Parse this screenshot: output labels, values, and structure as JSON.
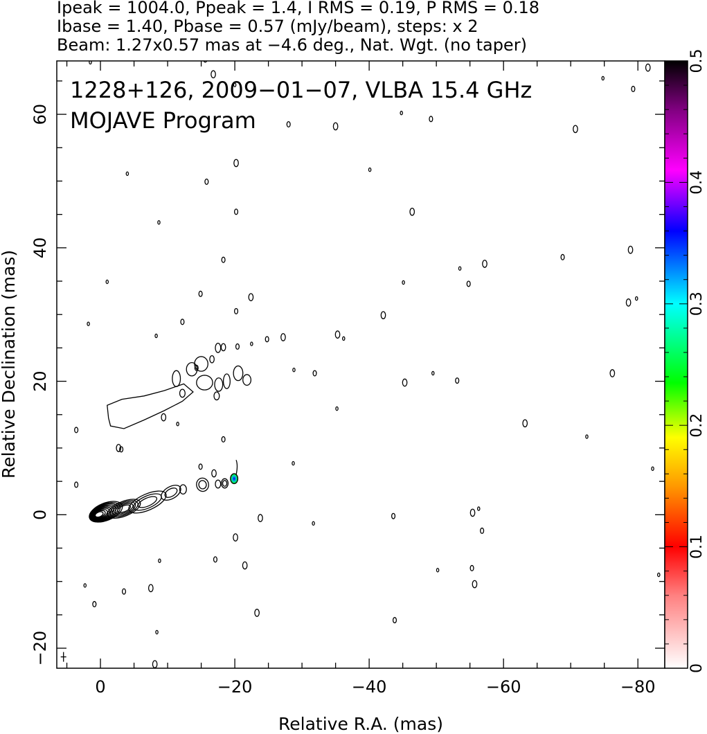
{
  "header": {
    "line1": "Ipeak = 1004.0, Ppeak = 1.4, I RMS = 0.19, P RMS = 0.18",
    "line2": "Ibase = 1.40, Pbase = 0.57 (mJy/beam), steps: x 2",
    "line3": "Beam: 1.27x0.57 mas at −4.6 deg., Nat. Wgt. (no taper)"
  },
  "chart_data": {
    "type": "contour",
    "title": "1228+126, 2009−01−07, VLBA 15.4 GHz",
    "subtitle": "MOJAVE Program",
    "xlabel": "Relative R.A. (mas)",
    "ylabel": "Relative Declination (mas)",
    "xlim": [
      6.5,
      -84
    ],
    "ylim": [
      -23,
      68
    ],
    "x_ticks": [
      0,
      -20,
      -40,
      -60,
      -80
    ],
    "x_tick_labels": [
      "0",
      "−20",
      "−40",
      "−60",
      "−80"
    ],
    "y_ticks": [
      -20,
      0,
      20,
      40,
      60
    ],
    "y_tick_labels": [
      "−20",
      "0",
      "20",
      "40",
      "60"
    ],
    "colorbar": {
      "range": [
        0,
        0.5
      ],
      "ticks": [
        0,
        0.1,
        0.2,
        0.3,
        0.4,
        0.5
      ],
      "tick_labels": [
        "0",
        "0.1",
        "0.2",
        "0.3",
        "0.4",
        "0.5"
      ],
      "colors": [
        "#ffffff",
        "#ff0000",
        "#ff8800",
        "#ffff00",
        "#00ff00",
        "#00ffff",
        "#0000ff",
        "#ff00ff",
        "#000000"
      ]
    },
    "core": {
      "x": 0.3,
      "y": 0.0,
      "levels": 10
    },
    "jet_knots": [
      {
        "x": -3.5,
        "y": 0.9,
        "rx": 2.6,
        "ry": 1.1,
        "angle": -22,
        "levels": 5
      },
      {
        "x": -7.0,
        "y": 1.9,
        "rx": 3.0,
        "ry": 1.2,
        "angle": -24,
        "levels": 3
      },
      {
        "x": -10.5,
        "y": 3.3,
        "rx": 1.6,
        "ry": 0.9,
        "angle": -30,
        "levels": 2
      },
      {
        "x": -12.3,
        "y": 3.8,
        "rx": 0.5,
        "ry": 0.7,
        "angle": 0,
        "levels": 1
      },
      {
        "x": -15.2,
        "y": 4.5,
        "rx": 0.9,
        "ry": 1.0,
        "angle": -10,
        "levels": 2
      },
      {
        "x": -17.5,
        "y": 4.6,
        "rx": 0.4,
        "ry": 0.6,
        "angle": 0,
        "levels": 1
      },
      {
        "x": -18.5,
        "y": 4.7,
        "rx": 0.5,
        "ry": 0.7,
        "angle": 0,
        "levels": 2
      }
    ],
    "polarization_blob": {
      "x": -19.9,
      "y": 5.4,
      "value": 0.35
    },
    "diffuse_lobe": {
      "levels": 1
    },
    "noise_islands": [
      [
        1.5,
        67.8
      ],
      [
        -15.6,
        68.2
      ],
      [
        -16.8,
        66.0
      ],
      [
        -20,
        64.4
      ],
      [
        -28,
        58.5
      ],
      [
        -35,
        58.2
      ],
      [
        -44.8,
        60.2
      ],
      [
        -49.2,
        59.3
      ],
      [
        -70.7,
        57.8
      ],
      [
        -74.8,
        65.4
      ],
      [
        -79.3,
        63.8
      ],
      [
        -81.5,
        67.0
      ],
      [
        -4,
        51.1
      ],
      [
        -15.8,
        49.9
      ],
      [
        -20.2,
        52.7
      ],
      [
        -40.1,
        51.7
      ],
      [
        -20.2,
        45.4
      ],
      [
        -46.4,
        45.4
      ],
      [
        -8.7,
        43.8
      ],
      [
        -18.3,
        38.2
      ],
      [
        -57.2,
        37.6
      ],
      [
        -53.5,
        36.9
      ],
      [
        -68.8,
        38.6
      ],
      [
        -78.9,
        39.7
      ],
      [
        -1,
        34.9
      ],
      [
        -14.9,
        33.1
      ],
      [
        -22.4,
        32.6
      ],
      [
        -45.1,
        34.8
      ],
      [
        -54.8,
        34.6
      ],
      [
        -78.6,
        31.8
      ],
      [
        -79.8,
        32.4
      ],
      [
        -20.2,
        30.5
      ],
      [
        -42.1,
        29.9
      ],
      [
        1.8,
        28.6
      ],
      [
        -12.2,
        28.9
      ],
      [
        -35.3,
        27.0
      ],
      [
        -8.3,
        26.8
      ],
      [
        -20.4,
        25.2
      ],
      [
        -18.3,
        25.1
      ],
      [
        -22.5,
        25.6
      ],
      [
        -24.8,
        26.3
      ],
      [
        -27.2,
        26.6
      ],
      [
        -36.2,
        26.4
      ],
      [
        -14.3,
        22.0
      ],
      [
        -16.6,
        23.3
      ],
      [
        -28.8,
        21.7
      ],
      [
        -31.9,
        21.2
      ],
      [
        -45.3,
        19.8
      ],
      [
        -49.5,
        21.2
      ],
      [
        -53.1,
        20.1
      ],
      [
        -76.2,
        21.2
      ],
      [
        -35.2,
        15.9
      ],
      [
        3.6,
        12.7
      ],
      [
        -9.4,
        14.6
      ],
      [
        -11.5,
        13.6
      ],
      [
        -18.3,
        11.3
      ],
      [
        -63.2,
        13.7
      ],
      [
        -72.4,
        11.7
      ],
      [
        -3.1,
        9.8
      ],
      [
        -2.7,
        10.0
      ],
      [
        -28.7,
        7.7
      ],
      [
        -14.9,
        7.2
      ],
      [
        -16.9,
        6.2
      ],
      [
        -82.2,
        6.9
      ],
      [
        3.6,
        4.5
      ],
      [
        -23.8,
        -0.5
      ],
      [
        -31.7,
        -1.3
      ],
      [
        -43.6,
        -0.2
      ],
      [
        -55.4,
        0.3
      ],
      [
        -56.3,
        0.9
      ],
      [
        -56.8,
        -2.4
      ],
      [
        -20.1,
        -3.4
      ],
      [
        -8.8,
        -6.9
      ],
      [
        -17.1,
        -6.7
      ],
      [
        -21.5,
        -7.6
      ],
      [
        2.3,
        -10.6
      ],
      [
        -3.5,
        -11.5
      ],
      [
        -7.5,
        -11.0
      ],
      [
        -50.2,
        -8.3
      ],
      [
        -55.3,
        -8.0
      ],
      [
        -55.7,
        -10.4
      ],
      [
        -83.1,
        -9.0
      ],
      [
        0.9,
        -13.4
      ],
      [
        -23.3,
        -14.7
      ],
      [
        -8.4,
        -17.6
      ],
      [
        -43.8,
        -15.8
      ],
      [
        -8.1,
        -22.4
      ]
    ]
  }
}
